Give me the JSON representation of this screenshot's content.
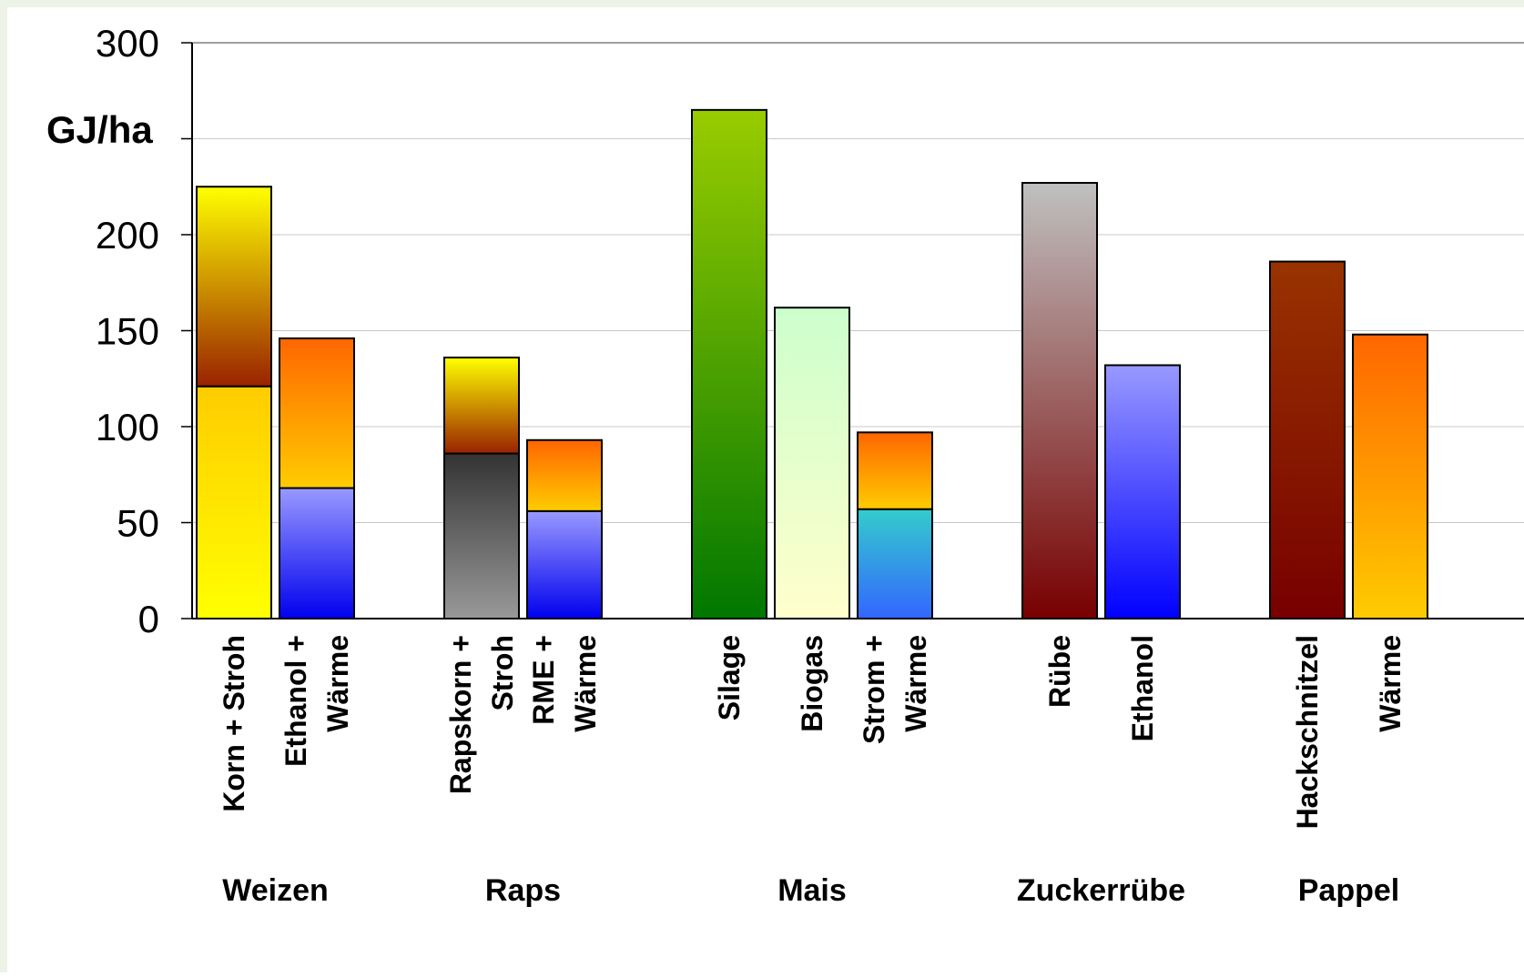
{
  "chart_data": {
    "type": "bar",
    "stacked": true,
    "ylabel": "GJ/ha",
    "ylim": [
      0,
      300
    ],
    "yticks": [
      0,
      50,
      100,
      150,
      200,
      300
    ],
    "grid": true,
    "groups": [
      {
        "name": "Weizen",
        "bars": [
          {
            "label": [
              "Korn + Stroh"
            ],
            "segments": [
              {
                "value": 121,
                "gradient": [
                  "#ffff00",
                  "#ffcc00"
                ]
              },
              {
                "value": 104,
                "gradient": [
                  "#992200",
                  "#ffff00"
                ]
              }
            ]
          },
          {
            "label": [
              "Ethanol +",
              "Wärme"
            ],
            "segments": [
              {
                "value": 68,
                "gradient": [
                  "#0000ee",
                  "#9999ff"
                ]
              },
              {
                "value": 78,
                "gradient": [
                  "#ffcc00",
                  "#ff6600"
                ]
              }
            ]
          }
        ]
      },
      {
        "name": "Raps",
        "bars": [
          {
            "label": [
              "Rapskorn +",
              "Stroh"
            ],
            "segments": [
              {
                "value": 86,
                "gradient": [
                  "#999999",
                  "#333333"
                ]
              },
              {
                "value": 50,
                "gradient": [
                  "#992200",
                  "#ffff00"
                ]
              }
            ]
          },
          {
            "label": [
              "RME +",
              "Wärme"
            ],
            "segments": [
              {
                "value": 56,
                "gradient": [
                  "#0000ee",
                  "#9999ff"
                ]
              },
              {
                "value": 37,
                "gradient": [
                  "#ffcc00",
                  "#ff6600"
                ]
              }
            ]
          }
        ]
      },
      {
        "name": "Mais",
        "bars": [
          {
            "label": [
              "Silage"
            ],
            "segments": [
              {
                "value": 265,
                "gradient": [
                  "#007700",
                  "#99cc00"
                ]
              }
            ]
          },
          {
            "label": [
              "Biogas"
            ],
            "segments": [
              {
                "value": 162,
                "gradient": [
                  "#ffffcc",
                  "#ccffcc"
                ]
              }
            ]
          },
          {
            "label": [
              "Strom +",
              "Wärme"
            ],
            "segments": [
              {
                "value": 57,
                "gradient": [
                  "#3366ff",
                  "#33cccc"
                ]
              },
              {
                "value": 40,
                "gradient": [
                  "#ffcc00",
                  "#ff6600"
                ]
              }
            ]
          }
        ]
      },
      {
        "name": "Zuckerrübe",
        "bars": [
          {
            "label": [
              "Rübe"
            ],
            "segments": [
              {
                "value": 227,
                "gradient": [
                  "#770000",
                  "#c0c0c0"
                ]
              }
            ]
          },
          {
            "label": [
              "Ethanol"
            ],
            "segments": [
              {
                "value": 132,
                "gradient": [
                  "#0000ff",
                  "#9999ff"
                ]
              }
            ]
          }
        ]
      },
      {
        "name": "Pappel",
        "bars": [
          {
            "label": [
              "Hackschnitzel"
            ],
            "segments": [
              {
                "value": 186,
                "gradient": [
                  "#770000",
                  "#993300"
                ]
              }
            ]
          },
          {
            "label": [
              "Wärme"
            ],
            "segments": [
              {
                "value": 148,
                "gradient": [
                  "#ffcc00",
                  "#ff6600"
                ]
              }
            ]
          }
        ]
      }
    ]
  }
}
